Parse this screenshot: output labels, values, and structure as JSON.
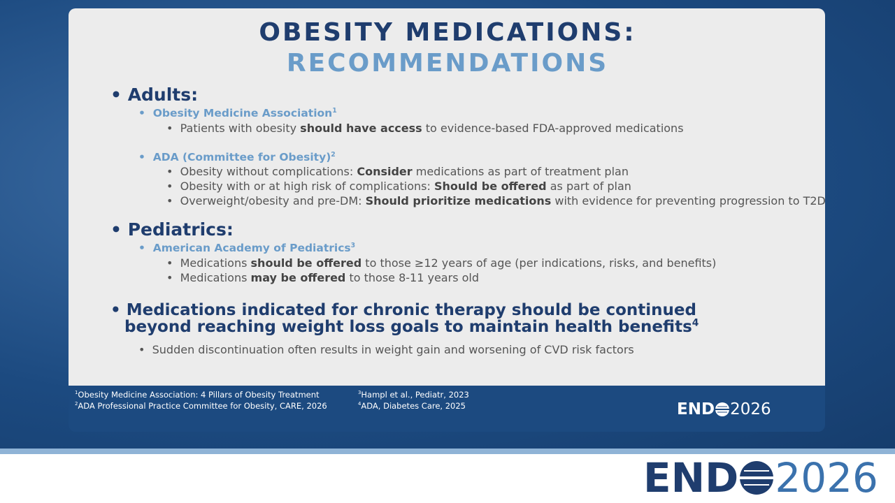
{
  "title": {
    "line1": "OBESITY MEDICATIONS:",
    "line2": "RECOMMENDATIONS"
  },
  "sections": [
    {
      "heading": "Adults:",
      "groups": [
        {
          "source": "Obesity Medicine Association",
          "note": "1",
          "items": [
            [
              "Patients with obesity ",
              "should have access",
              " to evidence-based FDA-approved medications"
            ]
          ]
        },
        {
          "source": "ADA (Committee for Obesity)",
          "note": "2",
          "items": [
            [
              "Obesity without complications: ",
              "Consider",
              " medications as part of treatment plan"
            ],
            [
              "Obesity with or at high risk of complications: ",
              "Should be offered",
              " as part of plan"
            ],
            [
              "Overweight/obesity and pre-DM: ",
              "Should prioritize medications",
              " with evidence for preventing progression to T2D"
            ]
          ]
        }
      ]
    },
    {
      "heading": "Pediatrics:",
      "groups": [
        {
          "source": "American Academy of Pediatrics",
          "note": "3",
          "items": [
            [
              "Medications ",
              "should be offered",
              " to those ≥12 years of age (per indications, risks, and benefits)"
            ],
            [
              "Medications ",
              "may be offered",
              " to those 8-11 years old"
            ]
          ]
        }
      ]
    },
    {
      "heading": "Medications indicated for chronic therapy should be continued beyond reaching weight loss goals to maintain health benefits",
      "note": "4",
      "items": [
        "Sudden discontinuation often results in weight gain and worsening of CVD risk factors"
      ]
    }
  ],
  "footnotes": [
    {
      "number": "1",
      "text": "Obesity Medicine Association: 4 Pillars of Obesity Treatment"
    },
    {
      "number": "2",
      "text": "ADA Professional Practice Committee for Obesity, CARE, 2026"
    },
    {
      "number": "3",
      "text": "Hampl et al., Pediatr, 2023"
    },
    {
      "number": "4",
      "text": "ADA, Diabetes Care, 2025"
    }
  ],
  "logo": {
    "left": "END",
    "right": "2026"
  }
}
